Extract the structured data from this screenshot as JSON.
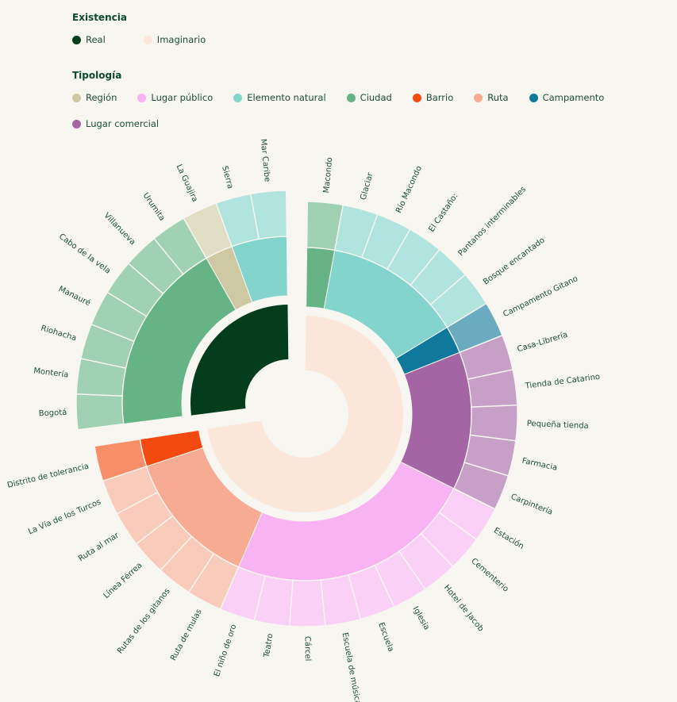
{
  "legend": {
    "existencia_title": "Existencia",
    "existencia": [
      {
        "label": "Real",
        "color": "#033d1c"
      },
      {
        "label": "Imaginario",
        "color": "#fce7db"
      }
    ],
    "tipologia_title": "Tipología",
    "tipologia_row1": [
      {
        "label": "Región",
        "color": "#cfc9a3"
      },
      {
        "label": "Lugar público",
        "color": "#f8b3f2"
      },
      {
        "label": "Elemento natural",
        "color": "#83d4cc"
      },
      {
        "label": "Ciudad",
        "color": "#66b485"
      },
      {
        "label": "Barrio",
        "color": "#f24a10"
      },
      {
        "label": "Ruta",
        "color": "#f6ab92"
      },
      {
        "label": "Campamento",
        "color": "#10789a"
      }
    ],
    "tipologia_row2": [
      {
        "label": "Lugar comercial",
        "color": "#a565a4"
      }
    ]
  },
  "chart_data": {
    "type": "sunburst",
    "title": "",
    "hierarchy": [
      "Existencia",
      "Tipología",
      "Lugar"
    ],
    "nodes": [
      {
        "existencia": "Real",
        "color": "#033d1c",
        "children": [
          {
            "tipologia": "Ciudad",
            "color": "#66b485",
            "places": [
              "Bogotá",
              "Montería",
              "Riohacha",
              "Manauré",
              "Cabo de la vela",
              "Villanueva",
              "Urumita"
            ]
          },
          {
            "tipologia": "Región",
            "color": "#cfc9a3",
            "places": [
              "La Guajira"
            ]
          },
          {
            "tipologia": "Elemento natural",
            "color": "#83d4cc",
            "places": [
              "Sierra",
              "Mar Caribe"
            ]
          }
        ]
      },
      {
        "existencia": "Imaginario",
        "color": "#fce7db",
        "children": [
          {
            "tipologia": "Ciudad",
            "color": "#66b485",
            "places": [
              "Macondo"
            ]
          },
          {
            "tipologia": "Elemento natural",
            "color": "#83d4cc",
            "places": [
              "Glaciar",
              "Río Macondo",
              "El Castaño:",
              "Pantanos interminables",
              "Bosque encantado"
            ]
          },
          {
            "tipologia": "Campamento",
            "color": "#10789a",
            "places": [
              "Campamento Gitano"
            ]
          },
          {
            "tipologia": "Lugar comercial",
            "color": "#a565a4",
            "places": [
              "Casa-Librería",
              "Tienda de Catarino",
              "Pequeña tienda",
              "Farmacia",
              "Carpintería"
            ]
          },
          {
            "tipologia": "Lugar público",
            "color": "#f8b3f2",
            "places": [
              "Estación",
              "Cementerio",
              "Hotel de Jacob",
              "Iglesia",
              "Escuela",
              "Escuela de música",
              "Cárcel",
              "Teatro",
              "El niño de oro"
            ]
          },
          {
            "tipologia": "Ruta",
            "color": "#f6ab92",
            "places": [
              "Ruta de mulas",
              "Rutas de los gitanos",
              "Línea Férrea",
              "Ruta al mar",
              "La Vía de los Turcos"
            ]
          },
          {
            "tipologia": "Barrio",
            "color": "#f24a10",
            "places": [
              "Distrito de tolerancia"
            ]
          }
        ]
      }
    ]
  }
}
